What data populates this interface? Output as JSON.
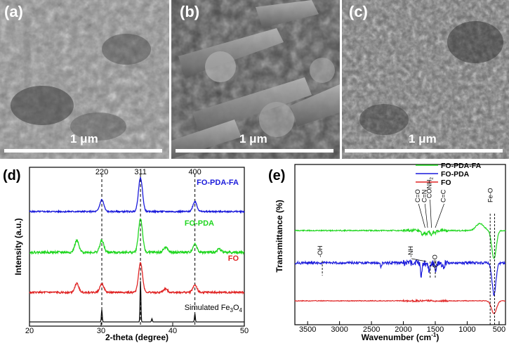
{
  "panels": {
    "a": {
      "letter": "(a)",
      "scale": "1 μm"
    },
    "b": {
      "letter": "(b)",
      "scale": "1 μm"
    },
    "c": {
      "letter": "(c)",
      "scale": "1 μm"
    },
    "d": {
      "letter": "(d)"
    },
    "e": {
      "letter": "(e)"
    }
  },
  "colors": {
    "green": "#1fd61f",
    "blue": "#1a1adb",
    "red": "#e02424",
    "black": "#111111"
  },
  "chart_data": [
    {
      "type": "line",
      "panel": "d",
      "xlabel": "2-theta (degree)",
      "ylabel": "Intensity (a.u.)",
      "xlim": [
        20,
        50
      ],
      "xticks": [
        "20",
        "30",
        "40",
        "50"
      ],
      "peak_labels": [
        {
          "x": 30.1,
          "label": "220"
        },
        {
          "x": 35.5,
          "label": "311"
        },
        {
          "x": 43.1,
          "label": "400"
        }
      ],
      "series": [
        {
          "name": "FO-PDA-FA",
          "color": "#1a1adb",
          "peaks": [
            [
              30.1,
              0.35
            ],
            [
              35.5,
              1.0
            ],
            [
              43.1,
              0.3
            ]
          ]
        },
        {
          "name": "FO-PDA",
          "color": "#1fd61f",
          "peaks": [
            [
              26.6,
              0.35
            ],
            [
              30.1,
              0.35
            ],
            [
              35.5,
              1.0
            ],
            [
              39.0,
              0.15
            ],
            [
              43.1,
              0.25
            ],
            [
              46.5,
              0.1
            ]
          ]
        },
        {
          "name": "FO",
          "color": "#e02424",
          "peaks": [
            [
              26.6,
              0.3
            ],
            [
              30.1,
              0.3
            ],
            [
              35.5,
              1.0
            ],
            [
              39.0,
              0.12
            ],
            [
              43.1,
              0.25
            ]
          ]
        },
        {
          "name": "Simulated Fe",
          "name_sub": "3",
          "name_tail": "O",
          "name_sub2": "4",
          "color": "#111111",
          "peaks": [
            [
              30.1,
              0.3
            ],
            [
              35.5,
              1.0
            ],
            [
              37.1,
              0.08
            ],
            [
              43.1,
              0.2
            ]
          ]
        }
      ]
    },
    {
      "type": "line",
      "panel": "e",
      "xlabel": "Wavenumber (cm",
      "xlabel_sup": "-1",
      "xlabel_tail": ")",
      "ylabel": "Transmittance (%)",
      "xlim": [
        3700,
        400
      ],
      "xticks": [
        "3500",
        "3000",
        "2500",
        "2000",
        "1500",
        "1000",
        "500"
      ],
      "legend": [
        "FO-PDA-FA",
        "FO-PDA",
        "FO"
      ],
      "annotations": [
        "C=O",
        "C=N",
        "CONH",
        "C=C",
        "Fe-O",
        "-OH",
        "-NH",
        "C=O"
      ],
      "annotation_sub": "2",
      "series": [
        {
          "name": "FO-PDA-FA",
          "color": "#1fd61f"
        },
        {
          "name": "FO-PDA",
          "color": "#1a1adb"
        },
        {
          "name": "FO",
          "color": "#e02424"
        }
      ]
    }
  ]
}
